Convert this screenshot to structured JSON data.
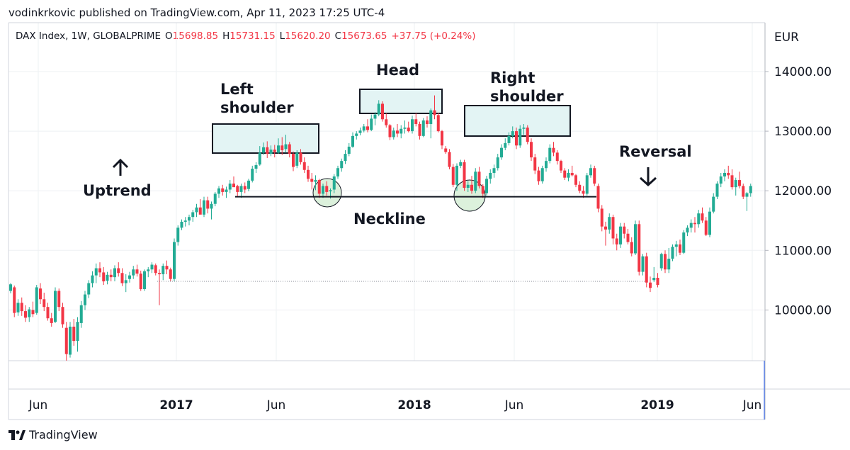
{
  "publish_line": "vodinkrkovic published on TradingView.com, Apr 11, 2023 17:25 UTC-4",
  "brand": "TradingView",
  "ohlc": {
    "symbol": "DAX Index, 1W, GLOBALPRIME",
    "o_label": "O",
    "o_value": "15698.85",
    "h_label": "H",
    "h_value": "15731.15",
    "l_label": "L",
    "l_value": "15620.20",
    "c_label": "C",
    "c_value": "15673.65",
    "change": "+37.75 (+0.24%)"
  },
  "annotations": {
    "left_shoulder": "Left\nshoulder",
    "head": "Head",
    "right_shoulder": "Right\nshoulder",
    "uptrend": "Uptrend",
    "reversal": "Reversal",
    "neckline": "Neckline"
  },
  "colors": {
    "up": "#22ab94",
    "down": "#f23645",
    "zone_fill": "#e3f4f4",
    "circle_fill": "#d6eed6",
    "grid": "#eef0f3",
    "axis_text": "#131722"
  },
  "chart_data": {
    "type": "candlestick",
    "currency": "EUR",
    "ylim": [
      9000,
      14700
    ],
    "y_ticks": [
      "14000.00",
      "13000.00",
      "12000.00",
      "11000.00",
      "10000.00"
    ],
    "x_ticks": [
      {
        "label": "Jun",
        "bold": false
      },
      {
        "label": "2017",
        "bold": true
      },
      {
        "label": "Jun",
        "bold": false
      },
      {
        "label": "2018",
        "bold": true
      },
      {
        "label": "Jun",
        "bold": false
      },
      {
        "label": "2019",
        "bold": true
      },
      {
        "label": "Jun",
        "bold": false
      }
    ],
    "neckline_level": 11900,
    "dotted_level": 10480,
    "candles": [
      [
        10320,
        10450,
        10280,
        10430
      ],
      [
        10380,
        10410,
        9880,
        9950
      ],
      [
        9960,
        10180,
        9900,
        10120
      ],
      [
        10120,
        10210,
        9900,
        9980
      ],
      [
        9980,
        10080,
        9800,
        9870
      ],
      [
        9880,
        10050,
        9800,
        10010
      ],
      [
        10000,
        10140,
        9880,
        9930
      ],
      [
        9950,
        10420,
        9920,
        10380
      ],
      [
        10360,
        10450,
        10100,
        10180
      ],
      [
        10180,
        10290,
        9980,
        10050
      ],
      [
        10050,
        10120,
        9820,
        9860
      ],
      [
        9860,
        9950,
        9720,
        9780
      ],
      [
        9800,
        10380,
        9780,
        10320
      ],
      [
        10320,
        10360,
        9980,
        10050
      ],
      [
        10050,
        10120,
        9700,
        9760
      ],
      [
        9700,
        9800,
        9150,
        9260
      ],
      [
        9250,
        9800,
        9200,
        9720
      ],
      [
        9720,
        9850,
        9400,
        9480
      ],
      [
        9480,
        9880,
        9300,
        9800
      ],
      [
        9780,
        10150,
        9700,
        10080
      ],
      [
        10080,
        10320,
        10000,
        10260
      ],
      [
        10260,
        10500,
        10200,
        10450
      ],
      [
        10450,
        10650,
        10380,
        10580
      ],
      [
        10580,
        10780,
        10450,
        10700
      ],
      [
        10700,
        10800,
        10550,
        10630
      ],
      [
        10630,
        10720,
        10420,
        10480
      ],
      [
        10490,
        10640,
        10430,
        10590
      ],
      [
        10590,
        10680,
        10480,
        10550
      ],
      [
        10550,
        10750,
        10480,
        10700
      ],
      [
        10700,
        10800,
        10560,
        10620
      ],
      [
        10620,
        10700,
        10400,
        10450
      ],
      [
        10450,
        10600,
        10300,
        10500
      ],
      [
        10520,
        10640,
        10460,
        10580
      ],
      [
        10580,
        10740,
        10520,
        10680
      ],
      [
        10680,
        10760,
        10560,
        10610
      ],
      [
        10610,
        10660,
        10320,
        10350
      ],
      [
        10350,
        10680,
        10320,
        10650
      ],
      [
        10650,
        10720,
        10550,
        10680
      ],
      [
        10680,
        10800,
        10620,
        10760
      ],
      [
        10750,
        10780,
        10580,
        10620
      ],
      [
        10620,
        10680,
        10080,
        10600
      ],
      [
        10600,
        10780,
        10500,
        10740
      ],
      [
        10740,
        10830,
        10600,
        10680
      ],
      [
        10680,
        10710,
        10480,
        10520
      ],
      [
        10520,
        11200,
        10480,
        11140
      ],
      [
        11140,
        11420,
        11080,
        11380
      ],
      [
        11380,
        11520,
        11340,
        11480
      ],
      [
        11480,
        11560,
        11400,
        11500
      ],
      [
        11500,
        11600,
        11420,
        11560
      ],
      [
        11560,
        11680,
        11480,
        11640
      ],
      [
        11640,
        11780,
        11560,
        11720
      ],
      [
        11720,
        11860,
        11620,
        11600
      ],
      [
        11600,
        11900,
        11560,
        11840
      ],
      [
        11840,
        11900,
        11620,
        11700
      ],
      [
        11700,
        11820,
        11520,
        11780
      ],
      [
        11780,
        11980,
        11740,
        11950
      ],
      [
        11950,
        12080,
        11880,
        12040
      ],
      [
        12040,
        12100,
        11920,
        11980
      ],
      [
        11980,
        12070,
        11880,
        12020
      ],
      [
        12020,
        12180,
        11960,
        12120
      ],
      [
        12120,
        12240,
        12080,
        12060
      ],
      [
        12080,
        12100,
        11900,
        11980
      ],
      [
        11980,
        12120,
        11880,
        12080
      ],
      [
        12080,
        12140,
        11960,
        12020
      ],
      [
        12030,
        12200,
        11990,
        12170
      ],
      [
        12170,
        12420,
        12140,
        12370
      ],
      [
        12370,
        12480,
        12300,
        12430
      ],
      [
        12440,
        12750,
        12420,
        12640
      ],
      [
        12640,
        12810,
        12600,
        12730
      ],
      [
        12730,
        12830,
        12550,
        12620
      ],
      [
        12620,
        12760,
        12580,
        12690
      ],
      [
        12690,
        12770,
        12560,
        12650
      ],
      [
        12640,
        12880,
        12620,
        12760
      ],
      [
        12760,
        12900,
        12600,
        12680
      ],
      [
        12700,
        12940,
        12640,
        12780
      ],
      [
        12780,
        12820,
        12560,
        12620
      ],
      [
        12620,
        12660,
        12330,
        12400
      ],
      [
        12420,
        12680,
        12380,
        12640
      ],
      [
        12640,
        12700,
        12440,
        12480
      ],
      [
        12480,
        12560,
        12300,
        12350
      ],
      [
        12350,
        12420,
        12150,
        12200
      ],
      [
        12200,
        12300,
        12020,
        12150
      ],
      [
        12150,
        12260,
        12010,
        12180
      ],
      [
        12180,
        12200,
        11880,
        11950
      ],
      [
        11950,
        12120,
        11880,
        12080
      ],
      [
        12080,
        12160,
        11920,
        11980
      ],
      [
        11990,
        12040,
        11870,
        12010
      ],
      [
        12020,
        12280,
        11960,
        12240
      ],
      [
        12240,
        12420,
        12200,
        12380
      ],
      [
        12380,
        12540,
        12320,
        12500
      ],
      [
        12500,
        12680,
        12450,
        12620
      ],
      [
        12620,
        12800,
        12580,
        12740
      ],
      [
        12740,
        12980,
        12720,
        12920
      ],
      [
        12920,
        13000,
        12860,
        12960
      ],
      [
        12970,
        13060,
        12930,
        13010
      ],
      [
        13010,
        13120,
        12980,
        13080
      ],
      [
        13080,
        13200,
        12980,
        13020
      ],
      [
        13020,
        13280,
        13000,
        13210
      ],
      [
        13210,
        13320,
        13100,
        13280
      ],
      [
        13280,
        13520,
        13250,
        13460
      ],
      [
        13460,
        13500,
        13160,
        13200
      ],
      [
        13200,
        13300,
        13060,
        13100
      ],
      [
        13100,
        13120,
        12850,
        12900
      ],
      [
        12900,
        13060,
        12860,
        13010
      ],
      [
        13010,
        13120,
        12900,
        12960
      ],
      [
        12960,
        13100,
        12880,
        13040
      ],
      [
        13040,
        13180,
        12960,
        13060
      ],
      [
        13060,
        13160,
        12980,
        13000
      ],
      [
        13000,
        13260,
        12960,
        13200
      ],
      [
        13200,
        13300,
        13080,
        13120
      ],
      [
        13120,
        13160,
        12860,
        12920
      ],
      [
        12920,
        13220,
        12900,
        13180
      ],
      [
        13180,
        13250,
        13060,
        13120
      ],
      [
        13120,
        13380,
        12880,
        13350
      ],
      [
        13350,
        13600,
        13200,
        13270
      ],
      [
        13270,
        13310,
        12980,
        13000
      ],
      [
        13000,
        13020,
        12700,
        12760
      ],
      [
        12710,
        12750,
        12620,
        12650
      ],
      [
        12650,
        12700,
        12360,
        12400
      ],
      [
        12400,
        12450,
        12060,
        12100
      ],
      [
        12100,
        12460,
        12000,
        12420
      ],
      [
        12420,
        12520,
        12380,
        12480
      ],
      [
        12480,
        12520,
        12000,
        12050
      ],
      [
        12050,
        12160,
        11980,
        12100
      ],
      [
        12100,
        12250,
        11950,
        12000
      ],
      [
        12000,
        12380,
        11960,
        12320
      ],
      [
        12320,
        12400,
        12040,
        12080
      ],
      [
        12080,
        12110,
        11880,
        11950
      ],
      [
        11960,
        12250,
        11920,
        12200
      ],
      [
        12200,
        12360,
        12120,
        12300
      ],
      [
        12300,
        12440,
        12220,
        12380
      ],
      [
        12380,
        12620,
        12340,
        12560
      ],
      [
        12560,
        12780,
        12520,
        12720
      ],
      [
        12720,
        12880,
        12680,
        12800
      ],
      [
        12800,
        12980,
        12760,
        12920
      ],
      [
        12920,
        13080,
        12880,
        13000
      ],
      [
        13000,
        13060,
        12700,
        12760
      ],
      [
        12760,
        13100,
        12720,
        13040
      ],
      [
        13040,
        13120,
        12940,
        13060
      ],
      [
        13060,
        13100,
        12780,
        12820
      ],
      [
        12820,
        12880,
        12500,
        12560
      ],
      [
        12560,
        12620,
        12280,
        12340
      ],
      [
        12340,
        12400,
        12100,
        12160
      ],
      [
        12160,
        12420,
        12120,
        12380
      ],
      [
        12380,
        12560,
        12320,
        12500
      ],
      [
        12500,
        12780,
        12460,
        12720
      ],
      [
        12720,
        12820,
        12580,
        12640
      ],
      [
        12640,
        12680,
        12440,
        12500
      ],
      [
        12500,
        12520,
        12300,
        12340
      ],
      [
        12340,
        12380,
        12180,
        12220
      ],
      [
        12220,
        12360,
        12160,
        12300
      ],
      [
        12300,
        12420,
        12240,
        12260
      ],
      [
        12260,
        12280,
        12060,
        12100
      ],
      [
        12100,
        12160,
        11960,
        12000
      ],
      [
        12000,
        12080,
        11880,
        11950
      ],
      [
        11950,
        12300,
        11920,
        12260
      ],
      [
        12260,
        12440,
        12220,
        12380
      ],
      [
        12380,
        12420,
        12080,
        12120
      ],
      [
        12080,
        12120,
        11640,
        11700
      ],
      [
        11700,
        11760,
        11320,
        11400
      ],
      [
        11400,
        11480,
        11080,
        11350
      ],
      [
        11350,
        11620,
        11280,
        11560
      ],
      [
        11560,
        11600,
        11100,
        11200
      ],
      [
        11200,
        11280,
        11000,
        11100
      ],
      [
        11100,
        11460,
        11040,
        11400
      ],
      [
        11400,
        11460,
        11200,
        11280
      ],
      [
        11280,
        11360,
        11100,
        11140
      ],
      [
        11140,
        11220,
        10900,
        10950
      ],
      [
        10950,
        11500,
        10920,
        11440
      ],
      [
        11440,
        11500,
        10580,
        10640
      ],
      [
        10640,
        10940,
        10580,
        10900
      ],
      [
        10900,
        10960,
        10380,
        10460
      ],
      [
        10460,
        10560,
        10300,
        10370
      ],
      [
        10500,
        10720,
        10470,
        10540
      ],
      [
        10540,
        10620,
        10380,
        10420
      ],
      [
        10700,
        10960,
        10660,
        10940
      ],
      [
        10940,
        11000,
        10620,
        10680
      ],
      [
        10680,
        11040,
        10620,
        10860
      ],
      [
        10860,
        11100,
        10820,
        11060
      ],
      [
        11060,
        11160,
        10900,
        11100
      ],
      [
        11100,
        11180,
        10920,
        10960
      ],
      [
        10960,
        11340,
        10940,
        11300
      ],
      [
        11300,
        11420,
        11240,
        11380
      ],
      [
        11380,
        11520,
        11300,
        11460
      ],
      [
        11460,
        11560,
        11300,
        11440
      ],
      [
        11440,
        11680,
        11380,
        11620
      ],
      [
        11620,
        11720,
        11460,
        11500
      ],
      [
        11500,
        11560,
        11240,
        11260
      ],
      [
        11260,
        11720,
        11220,
        11650
      ],
      [
        11650,
        11960,
        11620,
        11900
      ],
      [
        11900,
        12160,
        11860,
        12120
      ],
      [
        12120,
        12300,
        12060,
        12240
      ],
      [
        12240,
        12360,
        12160,
        12300
      ],
      [
        12300,
        12420,
        12200,
        12260
      ],
      [
        12260,
        12360,
        12020,
        12060
      ],
      [
        12060,
        12220,
        11920,
        12180
      ],
      [
        12180,
        12320,
        12040,
        12080
      ],
      [
        12080,
        12120,
        11860,
        11900
      ],
      [
        11900,
        11980,
        11660,
        11960
      ],
      [
        11960,
        12120,
        11900,
        12080
      ]
    ]
  }
}
